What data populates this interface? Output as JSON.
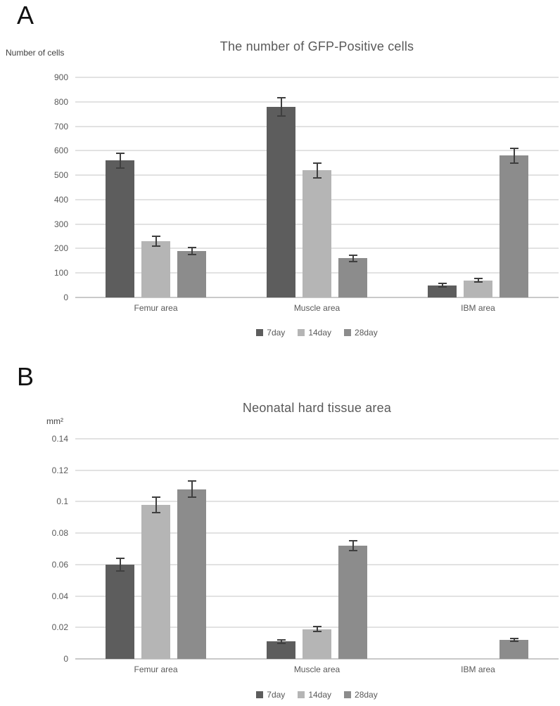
{
  "figure": {
    "background": "#ffffff",
    "text_color": "#595959",
    "grid_color": "#e2e2e2",
    "axis_color": "#c9c9c9",
    "error_bar_color": "#3f3f3f"
  },
  "chart_data": [
    {
      "type": "bar",
      "panel_label": "A",
      "title": "The number of GFP-Positive cells",
      "ylabel": "Number of cells",
      "xlabel": "",
      "categories": [
        "Femur area",
        "Muscle area",
        "IBM area"
      ],
      "series": [
        {
          "name": "7day",
          "color": "#5d5d5d",
          "values": [
            560,
            780,
            50
          ],
          "errors": [
            30,
            38,
            8
          ]
        },
        {
          "name": "14day",
          "color": "#b5b5b5",
          "values": [
            230,
            520,
            70
          ],
          "errors": [
            20,
            30,
            8
          ]
        },
        {
          "name": "28day",
          "color": "#8c8c8c",
          "values": [
            190,
            160,
            580
          ],
          "errors": [
            14,
            12,
            30
          ]
        }
      ],
      "ylim": [
        0,
        900
      ],
      "yticks": [
        {
          "value": 0,
          "label": "0"
        },
        {
          "value": 100,
          "label": "100"
        },
        {
          "value": 200,
          "label": "200"
        },
        {
          "value": 300,
          "label": "300"
        },
        {
          "value": 400,
          "label": "400"
        },
        {
          "value": 500,
          "label": "500"
        },
        {
          "value": 600,
          "label": "600"
        },
        {
          "value": 700,
          "label": "700"
        },
        {
          "value": 800,
          "label": "800"
        },
        {
          "value": 900,
          "label": "900"
        }
      ],
      "grid": true,
      "legend": [
        "7day",
        "14day",
        "28day"
      ],
      "legend_position": "bottom"
    },
    {
      "type": "bar",
      "panel_label": "B",
      "title": "Neonatal hard tissue area",
      "ylabel": "mm²",
      "xlabel": "",
      "categories": [
        "Femur area",
        "Muscle area",
        "IBM area"
      ],
      "series": [
        {
          "name": "7day",
          "color": "#5d5d5d",
          "values": [
            0.06,
            0.011,
            0
          ],
          "errors": [
            0.004,
            0.001,
            null
          ]
        },
        {
          "name": "14day",
          "color": "#b5b5b5",
          "values": [
            0.098,
            0.019,
            0
          ],
          "errors": [
            0.005,
            0.0015,
            null
          ]
        },
        {
          "name": "28day",
          "color": "#8c8c8c",
          "values": [
            0.108,
            0.072,
            0.012
          ],
          "errors": [
            0.005,
            0.003,
            0.001
          ]
        }
      ],
      "ylim": [
        0,
        0.14
      ],
      "yticks": [
        {
          "value": 0,
          "label": "0"
        },
        {
          "value": 0.02,
          "label": "0.02"
        },
        {
          "value": 0.04,
          "label": "0.04"
        },
        {
          "value": 0.06,
          "label": "0.06"
        },
        {
          "value": 0.08,
          "label": "0.08"
        },
        {
          "value": 0.1,
          "label": "0.1"
        },
        {
          "value": 0.12,
          "label": "0.12"
        },
        {
          "value": 0.14,
          "label": "0.14"
        }
      ],
      "grid": true,
      "legend": [
        "7day",
        "14day",
        "28day"
      ],
      "legend_position": "bottom"
    }
  ]
}
